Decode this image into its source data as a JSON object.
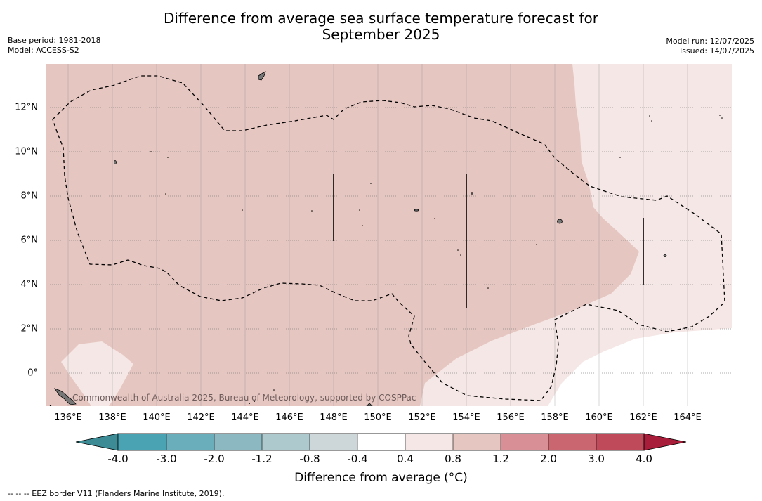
{
  "title_line1": "Difference from average sea surface temperature forecast for",
  "title_line2": "September 2025",
  "meta_left": {
    "base_period": "Base period: 1981-2018",
    "model": "Model: ACCESS-S2"
  },
  "meta_right": {
    "model_run": "Model run: 12/07/2025",
    "issued": "Issued: 14/07/2025"
  },
  "copyright": "Commonwealth of Australia 2025, Bureau of Meteorology, supported by COSPPac",
  "lon_labels": [
    "136°E",
    "138°E",
    "140°E",
    "142°E",
    "144°E",
    "146°E",
    "148°E",
    "150°E",
    "152°E",
    "154°E",
    "156°E",
    "158°E",
    "160°E",
    "162°E",
    "164°E"
  ],
  "lat_labels": [
    "12°N",
    "10°N",
    "8°N",
    "6°N",
    "4°N",
    "2°N",
    "0°"
  ],
  "colorbar": {
    "ticks": [
      "-4.0",
      "-3.0",
      "-2.0",
      "-1.2",
      "-0.8",
      "-0.4",
      "0.4",
      "0.8",
      "1.2",
      "2.0",
      "3.0",
      "4.0"
    ],
    "colors": [
      "#3d8c95",
      "#4aa3b3",
      "#6aadbb",
      "#8cb8c2",
      "#adc9cd",
      "#cdd7d9",
      "#ffffff",
      "#f5e7e5",
      "#e6c6c1",
      "#d89096",
      "#c96670",
      "#bf4a59",
      "#a81e3a"
    ],
    "title": "Difference from average (°C)"
  },
  "footnote": "--  --  -- EEZ border V11 (Flanders Marine Institute, 2019)."
}
